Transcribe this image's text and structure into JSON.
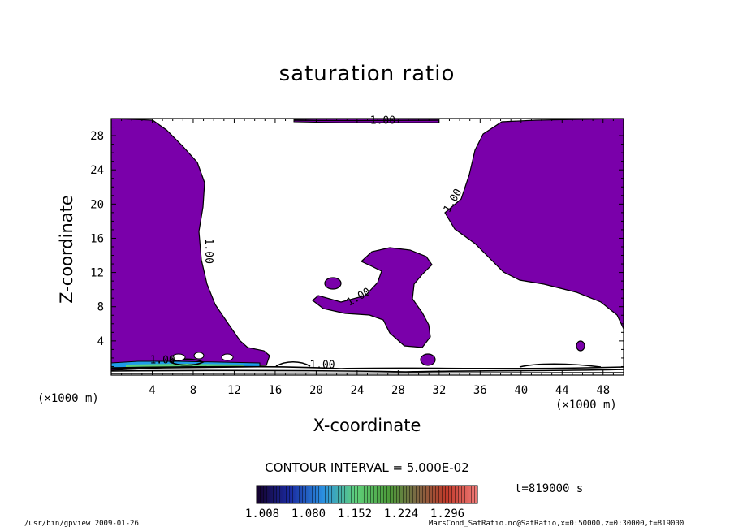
{
  "chart_data": {
    "type": "heatmap",
    "title": "saturation ratio",
    "xlabel": "X-coordinate",
    "ylabel": "Z-coordinate",
    "x_unit": "(×1000 m)",
    "xlim": [
      0,
      50
    ],
    "ylim": [
      0,
      30
    ],
    "x_ticks": [
      4,
      8,
      12,
      16,
      20,
      24,
      28,
      32,
      36,
      40,
      44,
      48
    ],
    "y_ticks": [
      4,
      8,
      12,
      16,
      20,
      24,
      28
    ],
    "contour_labels": [
      {
        "text": "1.00",
        "x": 26.5,
        "z": 29.4
      },
      {
        "text": "1.00",
        "x": 33.6,
        "z": 20.2
      },
      {
        "text": "1.00",
        "x": 9.2,
        "z": 14.5
      },
      {
        "text": "1.00",
        "x": 24.3,
        "z": 8.8
      },
      {
        "text": "1.00",
        "x": 5.0,
        "z": 1.4
      },
      {
        "text": "1.00",
        "x": 20.6,
        "z": 0.8
      }
    ],
    "contour_interval": "CONTOUR INTERVAL = 5.000E-02",
    "colorbar_ticks": [
      "1.008",
      "1.080",
      "1.152",
      "1.224",
      "1.296"
    ],
    "time": "t=819000 s",
    "fill_color": "#7a00aa"
  },
  "footer": {
    "left": "/usr/bin/gpview   2009-01-26",
    "right": "MarsCond_SatRatio.nc@SatRatio,x=0:50000,z=0:30000,t=819000"
  }
}
